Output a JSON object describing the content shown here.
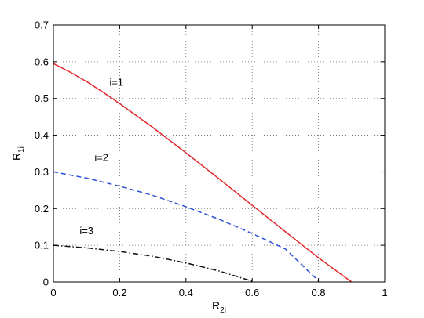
{
  "chart_data": {
    "type": "line",
    "title": "",
    "xlabel_main": "R",
    "xlabel_sub": "2i",
    "ylabel_main": "R",
    "ylabel_sub": "1i",
    "xlim": [
      0,
      1
    ],
    "ylim": [
      0,
      0.7
    ],
    "xticks": [
      0,
      0.2,
      0.4,
      0.6,
      0.8,
      1
    ],
    "xtick_labels": [
      "0",
      "0.2",
      "0.4",
      "0.6",
      "0.8",
      "1"
    ],
    "yticks": [
      0,
      0.1,
      0.2,
      0.3,
      0.4,
      0.5,
      0.6,
      0.7
    ],
    "ytick_labels": [
      "0",
      "0.1",
      "0.2",
      "0.3",
      "0.4",
      "0.5",
      "0.6",
      "0.7"
    ],
    "grid": true,
    "series": [
      {
        "color": "#e0262a",
        "style": "solid",
        "x": [
          0,
          0.05,
          0.1,
          0.15,
          0.2,
          0.3,
          0.4,
          0.5,
          0.6,
          0.7,
          0.8,
          0.9
        ],
        "y": [
          0.595,
          0.572,
          0.546,
          0.517,
          0.486,
          0.421,
          0.352,
          0.281,
          0.209,
          0.137,
          0.066,
          0
        ]
      },
      {
        "color": "#2b4fd8",
        "style": "dashed",
        "x": [
          0,
          0.1,
          0.2,
          0.3,
          0.4,
          0.5,
          0.6,
          0.7,
          0.8
        ],
        "y": [
          0.3,
          0.283,
          0.261,
          0.236,
          0.205,
          0.171,
          0.132,
          0.09,
          0.003
        ]
      },
      {
        "color": "#111111",
        "style": "dashdot",
        "x": [
          0,
          0.1,
          0.2,
          0.3,
          0.4,
          0.5,
          0.6
        ],
        "y": [
          0.1,
          0.093,
          0.083,
          0.07,
          0.052,
          0.03,
          0.002
        ]
      }
    ],
    "annotations": [
      {
        "text": "i=1",
        "x": 0.19,
        "y": 0.535
      },
      {
        "text": "i=2",
        "x": 0.145,
        "y": 0.33
      },
      {
        "text": "i=3",
        "x": 0.1,
        "y": 0.13
      }
    ]
  }
}
